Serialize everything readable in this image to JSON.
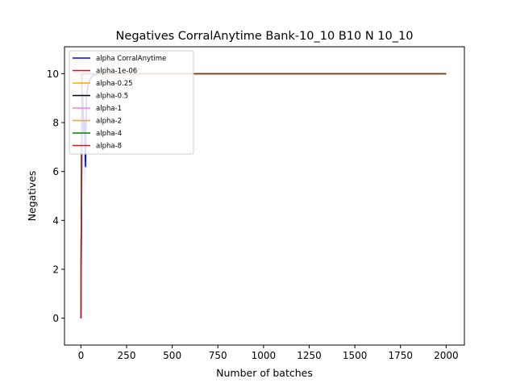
{
  "chart_data": {
    "type": "line",
    "title": "Negatives CorralAnytime Bank-10_10 B10 N 10_10",
    "xlabel": "Number of batches",
    "ylabel": "Negatives",
    "xlim": [
      -90,
      2100
    ],
    "ylim": [
      -1.1,
      11.1
    ],
    "xticks": [
      0,
      250,
      500,
      750,
      1000,
      1250,
      1500,
      1750,
      2000
    ],
    "yticks": [
      0,
      2,
      4,
      6,
      8,
      10
    ],
    "grid": false,
    "legend_position": "top-left",
    "series": [
      {
        "name": "alpha CorralAnytime",
        "color": "#0000ff",
        "band_color": "#b0b0ff",
        "x": [
          0,
          5,
          10,
          15,
          20,
          25,
          30,
          40,
          60,
          100,
          2000
        ],
        "y": [
          0,
          6.8,
          9.2,
          7.6,
          8.1,
          6.2,
          9.0,
          9.6,
          9.9,
          10,
          10
        ],
        "y_low": [
          -0.2,
          5.8,
          8.2,
          6.9,
          5.1,
          5.9,
          8.6,
          9.4,
          9.8,
          10,
          10
        ],
        "y_high": [
          0.2,
          7.6,
          10,
          8.8,
          10,
          9.4,
          10,
          10,
          10,
          10,
          10
        ]
      },
      {
        "name": "alpha-1e-06",
        "color": "#ff0000",
        "x": [
          0,
          5,
          10,
          2000
        ],
        "y": [
          0,
          10,
          10,
          10
        ]
      },
      {
        "name": "alpha-0.25",
        "color": "#ffa500",
        "x": [
          0,
          5,
          10,
          2000
        ],
        "y": [
          0,
          10,
          10,
          10
        ],
        "y_low": [
          -0.6,
          9.8,
          10,
          10
        ],
        "y_high": [
          0.6,
          10,
          10,
          10
        ]
      },
      {
        "name": "alpha-0.5",
        "color": "#000000",
        "x": [
          0,
          5,
          10,
          2000
        ],
        "y": [
          0,
          10,
          10,
          10
        ]
      },
      {
        "name": "alpha-1",
        "color": "#ee82ee",
        "x": [
          0,
          5,
          10,
          2000
        ],
        "y": [
          0,
          10,
          10,
          10
        ]
      },
      {
        "name": "alpha-2",
        "color": "#ffa500",
        "x": [
          0,
          5,
          10,
          2000
        ],
        "y": [
          0,
          10,
          10,
          10
        ]
      },
      {
        "name": "alpha-4",
        "color": "#008000",
        "x": [
          0,
          5,
          10,
          2000
        ],
        "y": [
          0,
          10,
          10,
          10
        ]
      },
      {
        "name": "alpha-8",
        "color": "#a52a2a",
        "x": [
          0,
          5,
          10,
          2000
        ],
        "y": [
          0,
          10,
          10,
          10
        ]
      }
    ]
  }
}
